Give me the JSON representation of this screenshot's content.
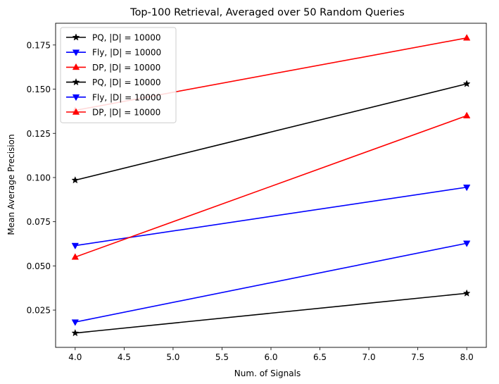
{
  "chart_data": {
    "type": "line",
    "title": "Top-100 Retrieval, Averaged over 50 Random Queries",
    "xlabel": "Num. of Signals",
    "ylabel": "Mean Average Precision",
    "xlim": [
      3.8,
      8.2
    ],
    "ylim": [
      0.0039,
      0.1873
    ],
    "xticks": [
      4.0,
      4.5,
      5.0,
      5.5,
      6.0,
      6.5,
      7.0,
      7.5,
      8.0
    ],
    "xtick_labels": [
      "4.0",
      "4.5",
      "5.0",
      "5.5",
      "6.0",
      "6.5",
      "7.0",
      "7.5",
      "8.0"
    ],
    "yticks": [
      0.025,
      0.05,
      0.075,
      0.1,
      0.125,
      0.15,
      0.175
    ],
    "ytick_labels": [
      "0.025",
      "0.050",
      "0.075",
      "0.100",
      "0.125",
      "0.150",
      "0.175"
    ],
    "grid": false,
    "legend_position": "top-left",
    "x": [
      4,
      8
    ],
    "series": [
      {
        "name": "PQ, |D| = 10000",
        "color": "#000000",
        "marker": "star",
        "values": [
          0.0985,
          0.153
        ]
      },
      {
        "name": "Fly, |D| = 10000",
        "color": "#0000ff",
        "marker": "triangle-down",
        "values": [
          0.0615,
          0.0945
        ]
      },
      {
        "name": "DP, |D| = 10000",
        "color": "#ff0000",
        "marker": "triangle-up",
        "values": [
          0.138,
          0.179
        ]
      },
      {
        "name": "PQ, |D| = 10000",
        "color": "#000000",
        "marker": "star",
        "values": [
          0.012,
          0.0345
        ]
      },
      {
        "name": "Fly, |D| = 10000",
        "color": "#0000ff",
        "marker": "triangle-down",
        "values": [
          0.0182,
          0.0628
        ]
      },
      {
        "name": "DP, |D| = 10000",
        "color": "#ff0000",
        "marker": "triangle-up",
        "values": [
          0.055,
          0.135
        ]
      }
    ]
  }
}
